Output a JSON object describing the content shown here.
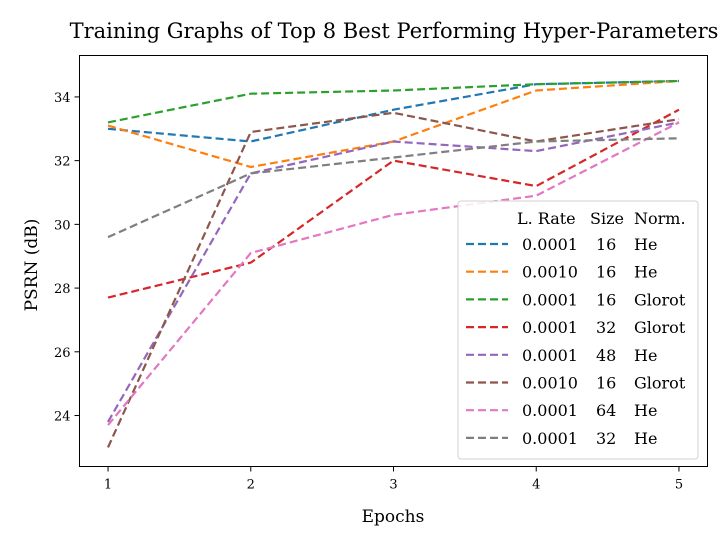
{
  "chart_data": {
    "type": "line",
    "title": "Training Graphs of Top 8 Best Performing Hyper-Parameters",
    "xlabel": "Epochs",
    "ylabel": "PSRN (dB)",
    "x": [
      1,
      2,
      3,
      4,
      5
    ],
    "xticks": [
      1,
      2,
      3,
      4,
      5
    ],
    "yticks": [
      24,
      26,
      28,
      30,
      32,
      34
    ],
    "xlim": [
      0.8,
      5.2
    ],
    "ylim": [
      22.4,
      35.3
    ],
    "grid": false,
    "legend": {
      "placement": "lower-right",
      "headers": [
        "L. Rate",
        "Size",
        "Norm."
      ]
    },
    "series": [
      {
        "lr": "0.0001",
        "size": "16",
        "norm": "He",
        "color": "#1f77b4",
        "values": [
          33.0,
          32.6,
          33.6,
          34.4,
          34.5
        ]
      },
      {
        "lr": "0.0010",
        "size": "16",
        "norm": "He",
        "color": "#ff7f0e",
        "values": [
          33.1,
          31.8,
          32.6,
          34.2,
          34.5
        ]
      },
      {
        "lr": "0.0001",
        "size": "16",
        "norm": "Glorot",
        "color": "#2ca02c",
        "values": [
          33.2,
          34.1,
          34.2,
          34.4,
          34.5
        ]
      },
      {
        "lr": "0.0001",
        "size": "32",
        "norm": "Glorot",
        "color": "#d62728",
        "values": [
          27.7,
          28.8,
          32.0,
          31.2,
          33.6
        ]
      },
      {
        "lr": "0.0001",
        "size": "48",
        "norm": "He",
        "color": "#9467bd",
        "values": [
          23.8,
          31.6,
          32.6,
          32.3,
          33.2
        ]
      },
      {
        "lr": "0.0010",
        "size": "16",
        "norm": "Glorot",
        "color": "#8c564b",
        "values": [
          23.0,
          32.9,
          33.5,
          32.6,
          33.3
        ]
      },
      {
        "lr": "0.0001",
        "size": "64",
        "norm": "He",
        "color": "#e377c2",
        "values": [
          23.7,
          29.1,
          30.3,
          30.9,
          33.2
        ]
      },
      {
        "lr": "0.0001",
        "size": "32",
        "norm": "He",
        "color": "#7f7f7f",
        "values": [
          29.6,
          31.6,
          32.1,
          32.6,
          32.7
        ]
      }
    ]
  }
}
